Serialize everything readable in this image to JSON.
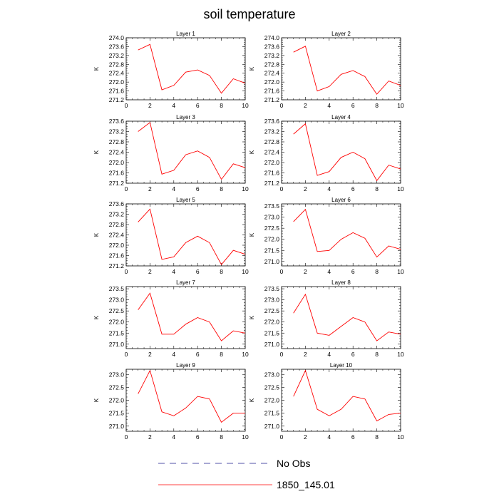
{
  "figure": {
    "title": "soil temperature",
    "legend": [
      {
        "label": "No Obs",
        "color": "#1a1a8c",
        "style": "dashed"
      },
      {
        "label": "1850_145.01",
        "color": "#ff0000",
        "style": "solid"
      }
    ]
  },
  "chart_data": [
    {
      "type": "line",
      "title": "Layer 1",
      "ylabel": "K",
      "xlim": [
        0,
        10
      ],
      "ylim": [
        271.2,
        274.0
      ],
      "xticks": [
        0,
        2,
        4,
        6,
        8,
        10
      ],
      "yticks": [
        "271.2",
        "271.6",
        "272.0",
        "272.4",
        "272.8",
        "273.2",
        "273.6",
        "274.0"
      ],
      "x": [
        1,
        2,
        3,
        4,
        5,
        6,
        7,
        8,
        9,
        10
      ],
      "series": [
        {
          "name": "1850_145.01",
          "color": "#ff0000",
          "values": [
            273.45,
            273.7,
            271.65,
            271.85,
            272.45,
            272.55,
            272.3,
            271.5,
            272.15,
            271.95
          ]
        }
      ]
    },
    {
      "type": "line",
      "title": "Layer 2",
      "ylabel": "K",
      "xlim": [
        0,
        10
      ],
      "ylim": [
        271.2,
        274.0
      ],
      "xticks": [
        0,
        2,
        4,
        6,
        8,
        10
      ],
      "yticks": [
        "271.2",
        "271.6",
        "272.0",
        "272.4",
        "272.8",
        "273.2",
        "273.6",
        "274.0"
      ],
      "x": [
        1,
        2,
        3,
        4,
        5,
        6,
        7,
        8,
        9,
        10
      ],
      "series": [
        {
          "name": "1850_145.01",
          "color": "#ff0000",
          "values": [
            273.35,
            273.62,
            271.6,
            271.8,
            272.35,
            272.52,
            272.25,
            271.45,
            272.05,
            271.85
          ]
        }
      ]
    },
    {
      "type": "line",
      "title": "Layer 3",
      "ylabel": "K",
      "xlim": [
        0,
        10
      ],
      "ylim": [
        271.2,
        273.6
      ],
      "xticks": [
        0,
        2,
        4,
        6,
        8,
        10
      ],
      "yticks": [
        "271.2",
        "271.6",
        "272.0",
        "272.4",
        "272.8",
        "273.2",
        "273.6"
      ],
      "x": [
        1,
        2,
        3,
        4,
        5,
        6,
        7,
        8,
        9,
        10
      ],
      "series": [
        {
          "name": "1850_145.01",
          "color": "#ff0000",
          "values": [
            273.2,
            273.55,
            271.55,
            271.7,
            272.3,
            272.45,
            272.2,
            271.35,
            271.95,
            271.8
          ]
        }
      ]
    },
    {
      "type": "line",
      "title": "Layer 4",
      "ylabel": "K",
      "xlim": [
        0,
        10
      ],
      "ylim": [
        271.2,
        273.6
      ],
      "xticks": [
        0,
        2,
        4,
        6,
        8,
        10
      ],
      "yticks": [
        "271.2",
        "271.6",
        "272.0",
        "272.4",
        "272.8",
        "273.2",
        "273.6"
      ],
      "x": [
        1,
        2,
        3,
        4,
        5,
        6,
        7,
        8,
        9,
        10
      ],
      "series": [
        {
          "name": "1850_145.01",
          "color": "#ff0000",
          "values": [
            273.1,
            273.5,
            271.5,
            271.65,
            272.2,
            272.4,
            272.15,
            271.3,
            271.9,
            271.75
          ]
        }
      ]
    },
    {
      "type": "line",
      "title": "Layer 5",
      "ylabel": "K",
      "xlim": [
        0,
        10
      ],
      "ylim": [
        271.2,
        273.6
      ],
      "xticks": [
        0,
        2,
        4,
        6,
        8,
        10
      ],
      "yticks": [
        "271.2",
        "271.6",
        "272.0",
        "272.4",
        "272.8",
        "273.2",
        "273.6"
      ],
      "x": [
        1,
        2,
        3,
        4,
        5,
        6,
        7,
        8,
        9,
        10
      ],
      "series": [
        {
          "name": "1850_145.01",
          "color": "#ff0000",
          "values": [
            272.9,
            273.4,
            271.45,
            271.55,
            272.1,
            272.35,
            272.1,
            271.25,
            271.8,
            271.65
          ]
        }
      ]
    },
    {
      "type": "line",
      "title": "Layer 6",
      "ylabel": "K",
      "xlim": [
        0,
        10
      ],
      "ylim": [
        270.8,
        273.6
      ],
      "xticks": [
        0,
        2,
        4,
        6,
        8,
        10
      ],
      "yticks": [
        "271.0",
        "271.5",
        "272.0",
        "272.5",
        "273.0",
        "273.5"
      ],
      "x": [
        1,
        2,
        3,
        4,
        5,
        6,
        7,
        8,
        9,
        10
      ],
      "series": [
        {
          "name": "1850_145.01",
          "color": "#ff0000",
          "values": [
            272.8,
            273.35,
            271.45,
            271.5,
            272.0,
            272.3,
            272.05,
            271.2,
            271.7,
            271.55
          ]
        }
      ]
    },
    {
      "type": "line",
      "title": "Layer 7",
      "ylabel": "K",
      "xlim": [
        0,
        10
      ],
      "ylim": [
        270.8,
        273.6
      ],
      "xticks": [
        0,
        2,
        4,
        6,
        8,
        10
      ],
      "yticks": [
        "271.0",
        "271.5",
        "272.0",
        "272.5",
        "273.0",
        "273.5"
      ],
      "x": [
        1,
        2,
        3,
        4,
        5,
        6,
        7,
        8,
        9,
        10
      ],
      "series": [
        {
          "name": "1850_145.01",
          "color": "#ff0000",
          "values": [
            272.55,
            273.3,
            271.45,
            271.45,
            271.9,
            272.2,
            272.0,
            271.15,
            271.6,
            271.5
          ]
        }
      ]
    },
    {
      "type": "line",
      "title": "Layer 8",
      "ylabel": "K",
      "xlim": [
        0,
        10
      ],
      "ylim": [
        270.8,
        273.6
      ],
      "xticks": [
        0,
        2,
        4,
        6,
        8,
        10
      ],
      "yticks": [
        "271.0",
        "271.5",
        "272.0",
        "272.5",
        "273.0",
        "273.5"
      ],
      "x": [
        1,
        2,
        3,
        4,
        5,
        6,
        7,
        8,
        9,
        10
      ],
      "series": [
        {
          "name": "1850_145.01",
          "color": "#ff0000",
          "values": [
            272.4,
            273.25,
            271.5,
            271.4,
            271.8,
            272.2,
            272.0,
            271.15,
            271.55,
            271.45
          ]
        }
      ]
    },
    {
      "type": "line",
      "title": "Layer 9",
      "ylabel": "K",
      "xlim": [
        0,
        10
      ],
      "ylim": [
        270.8,
        273.2
      ],
      "xticks": [
        0,
        2,
        4,
        6,
        8,
        10
      ],
      "yticks": [
        "271.0",
        "271.5",
        "272.0",
        "272.5",
        "273.0"
      ],
      "x": [
        1,
        2,
        3,
        4,
        5,
        6,
        7,
        8,
        9,
        10
      ],
      "series": [
        {
          "name": "1850_145.01",
          "color": "#ff0000",
          "values": [
            272.25,
            273.15,
            271.55,
            271.4,
            271.7,
            272.15,
            272.05,
            271.15,
            271.5,
            271.5
          ]
        }
      ]
    },
    {
      "type": "line",
      "title": "Layer 10",
      "ylabel": "K",
      "xlim": [
        0,
        10
      ],
      "ylim": [
        270.8,
        273.2
      ],
      "xticks": [
        0,
        2,
        4,
        6,
        8,
        10
      ],
      "yticks": [
        "271.0",
        "271.5",
        "272.0",
        "272.5",
        "273.0"
      ],
      "x": [
        1,
        2,
        3,
        4,
        5,
        6,
        7,
        8,
        9,
        10
      ],
      "series": [
        {
          "name": "1850_145.01",
          "color": "#ff0000",
          "values": [
            272.15,
            273.15,
            271.65,
            271.4,
            271.65,
            272.15,
            272.05,
            271.2,
            271.45,
            271.5
          ]
        }
      ]
    }
  ]
}
